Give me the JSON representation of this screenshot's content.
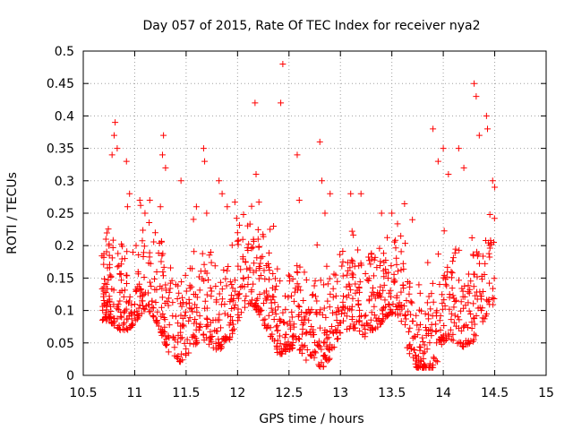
{
  "chart_data": {
    "type": "scatter",
    "title": "Day 057 of 2015, Rate Of TEC Index for receiver nya2",
    "xlabel": "GPS time / hours",
    "ylabel": "ROTI / TECUs",
    "xlim": [
      10.5,
      15
    ],
    "ylim": [
      0,
      0.5
    ],
    "xticks": [
      10.5,
      11,
      11.5,
      12,
      12.5,
      13,
      13.5,
      14,
      14.5,
      15
    ],
    "yticks": [
      0,
      0.05,
      0.1,
      0.15,
      0.2,
      0.25,
      0.3,
      0.35,
      0.4,
      0.45,
      0.5
    ],
    "xtick_labels": [
      "10.5",
      "11",
      "11.5",
      "12",
      "12.5",
      "13",
      "13.5",
      "14",
      "14.5",
      "15"
    ],
    "ytick_labels": [
      "0",
      "0.05",
      "0.1",
      "0.15",
      "0.2",
      "0.25",
      "0.3",
      "0.35",
      "0.4",
      "0.45",
      "0.5"
    ],
    "grid": true,
    "marker": "+",
    "color": "#ff0000",
    "data_range_x": [
      10.67,
      14.5
    ],
    "series": [
      {
        "name": "ROTI",
        "points": [
          [
            10.7,
            0.13
          ],
          [
            10.72,
            0.21
          ],
          [
            10.75,
            0.2
          ],
          [
            10.78,
            0.34
          ],
          [
            10.8,
            0.37
          ],
          [
            10.81,
            0.39
          ],
          [
            10.83,
            0.35
          ],
          [
            10.92,
            0.33
          ],
          [
            10.95,
            0.28
          ],
          [
            10.93,
            0.26
          ],
          [
            11.05,
            0.27
          ],
          [
            11.1,
            0.25
          ],
          [
            11.2,
            0.22
          ],
          [
            11.25,
            0.26
          ],
          [
            11.28,
            0.37
          ],
          [
            11.27,
            0.34
          ],
          [
            11.3,
            0.32
          ],
          [
            11.45,
            0.3
          ],
          [
            11.6,
            0.26
          ],
          [
            11.67,
            0.35
          ],
          [
            11.68,
            0.33
          ],
          [
            11.7,
            0.25
          ],
          [
            11.82,
            0.3
          ],
          [
            11.85,
            0.28
          ],
          [
            11.9,
            0.26
          ],
          [
            12.0,
            0.22
          ],
          [
            12.17,
            0.42
          ],
          [
            12.18,
            0.31
          ],
          [
            12.2,
            0.21
          ],
          [
            12.35,
            0.23
          ],
          [
            12.42,
            0.42
          ],
          [
            12.44,
            0.48
          ],
          [
            12.58,
            0.34
          ],
          [
            12.6,
            0.27
          ],
          [
            12.8,
            0.36
          ],
          [
            12.82,
            0.3
          ],
          [
            12.85,
            0.25
          ],
          [
            12.9,
            0.28
          ],
          [
            13.1,
            0.28
          ],
          [
            13.2,
            0.28
          ],
          [
            13.4,
            0.25
          ],
          [
            13.5,
            0.25
          ],
          [
            13.7,
            0.24
          ],
          [
            13.9,
            0.38
          ],
          [
            13.95,
            0.33
          ],
          [
            14.0,
            0.35
          ],
          [
            14.05,
            0.31
          ],
          [
            14.15,
            0.35
          ],
          [
            14.2,
            0.32
          ],
          [
            14.3,
            0.45
          ],
          [
            14.32,
            0.43
          ],
          [
            14.35,
            0.37
          ],
          [
            14.42,
            0.4
          ],
          [
            14.43,
            0.38
          ],
          [
            14.48,
            0.3
          ],
          [
            14.5,
            0.29
          ]
        ]
      }
    ]
  }
}
